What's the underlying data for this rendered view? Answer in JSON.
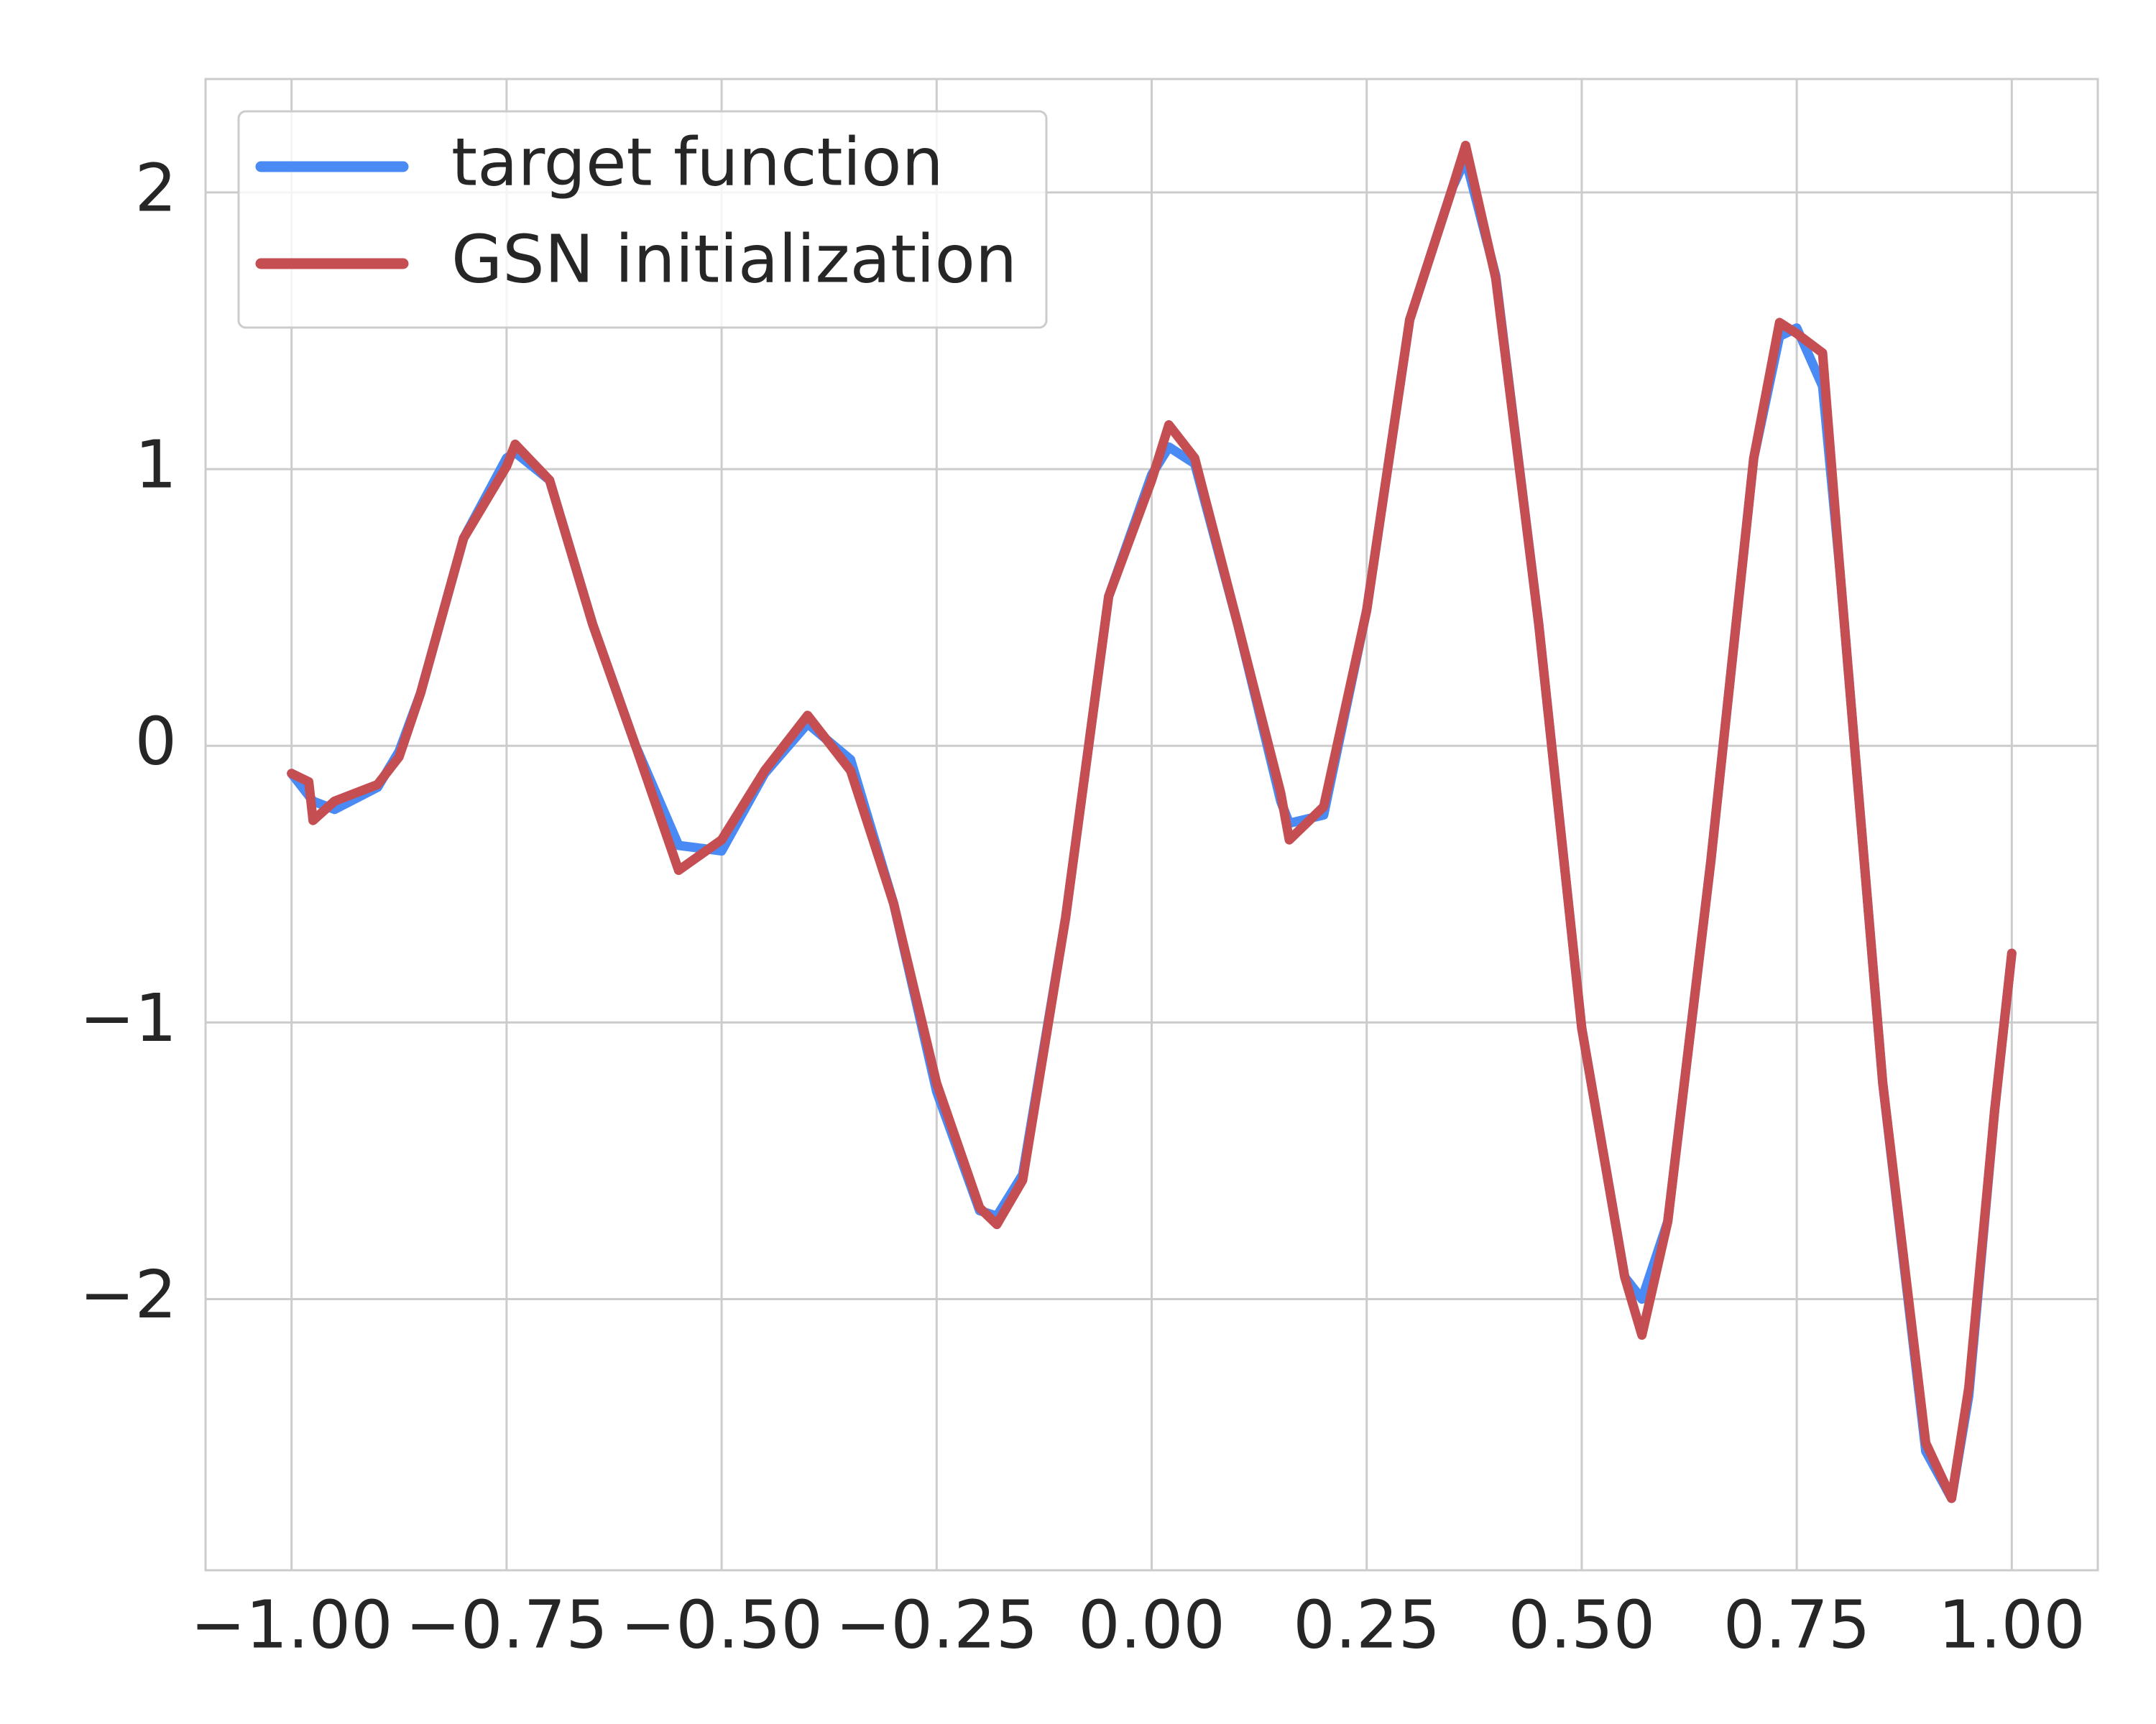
{
  "chart_data": {
    "type": "line",
    "x": [
      -1.0,
      -0.98,
      -0.975,
      -0.95,
      -0.9,
      -0.875,
      -0.85,
      -0.8,
      -0.75,
      -0.74,
      -0.7,
      -0.65,
      -0.6,
      -0.55,
      -0.5,
      -0.45,
      -0.4,
      -0.35,
      -0.3,
      -0.25,
      -0.2,
      -0.18,
      -0.15,
      -0.1,
      -0.05,
      0.0,
      0.02,
      0.05,
      0.1,
      0.15,
      0.16,
      0.2,
      0.25,
      0.3,
      0.35,
      0.365,
      0.4,
      0.45,
      0.5,
      0.55,
      0.57,
      0.6,
      0.65,
      0.7,
      0.73,
      0.75,
      0.78,
      0.8,
      0.85,
      0.9,
      0.93,
      0.95,
      0.98,
      1.0
    ],
    "series": [
      {
        "name": "target function",
        "color": "#4a8af4",
        "values": [
          -0.1,
          -0.18,
          -0.2,
          -0.23,
          -0.15,
          -0.02,
          0.19,
          0.75,
          1.04,
          1.06,
          0.96,
          0.44,
          0.0,
          -0.36,
          -0.38,
          -0.1,
          0.08,
          -0.05,
          -0.57,
          -1.25,
          -1.68,
          -1.7,
          -1.55,
          -0.62,
          0.54,
          0.98,
          1.08,
          1.02,
          0.44,
          -0.2,
          -0.28,
          -0.25,
          0.49,
          1.54,
          2.02,
          2.12,
          1.7,
          0.44,
          -1.02,
          -1.92,
          -2.0,
          -1.72,
          -0.42,
          1.04,
          1.48,
          1.51,
          1.3,
          0.64,
          -1.22,
          -2.55,
          -2.72,
          -2.35,
          -1.32,
          -0.75
        ]
      },
      {
        "name": "GSN initialization",
        "color": "#c44e52",
        "values": [
          -0.1,
          -0.13,
          -0.27,
          -0.2,
          -0.14,
          -0.04,
          0.19,
          0.75,
          1.01,
          1.09,
          0.96,
          0.44,
          0.0,
          -0.45,
          -0.34,
          -0.09,
          0.11,
          -0.09,
          -0.57,
          -1.22,
          -1.67,
          -1.73,
          -1.57,
          -0.62,
          0.54,
          0.96,
          1.16,
          1.04,
          0.44,
          -0.17,
          -0.34,
          -0.22,
          0.49,
          1.54,
          2.02,
          2.17,
          1.69,
          0.44,
          -1.02,
          -1.92,
          -2.13,
          -1.72,
          -0.42,
          1.04,
          1.53,
          1.49,
          1.42,
          0.64,
          -1.22,
          -2.52,
          -2.72,
          -2.32,
          -1.32,
          -0.75
        ]
      }
    ],
    "xlim": [
      -1.1,
      1.1
    ],
    "xticks": [
      {
        "value": -1.0,
        "label": "−1.00"
      },
      {
        "value": -0.75,
        "label": "−0.75"
      },
      {
        "value": -0.5,
        "label": "−0.50"
      },
      {
        "value": -0.25,
        "label": "−0.25"
      },
      {
        "value": 0.0,
        "label": "0.00"
      },
      {
        "value": 0.25,
        "label": "0.25"
      },
      {
        "value": 0.5,
        "label": "0.50"
      },
      {
        "value": 0.75,
        "label": "0.75"
      },
      {
        "value": 1.0,
        "label": "1.00"
      }
    ],
    "ylim": [
      -2.98,
      2.41
    ],
    "yticks": [
      {
        "value": -2,
        "label": "−2"
      },
      {
        "value": -1,
        "label": "−1"
      },
      0,
      1,
      2
    ],
    "grid": true,
    "legend": "upper left"
  }
}
